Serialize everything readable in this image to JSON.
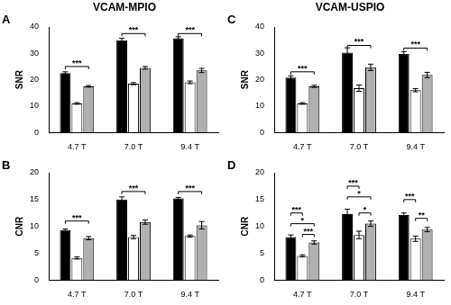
{
  "chart_data": [
    {
      "type": "bar",
      "title": "A",
      "subtitle": "VCAM-MPIO",
      "y_label": "SNR",
      "categories": [
        "4.7 T",
        "7.0 T",
        "9.4 T"
      ],
      "series": [
        {
          "color": "#000000",
          "values": [
            22.5,
            35.0,
            35.7
          ],
          "errors": [
            0.5,
            0.7,
            0.6
          ]
        },
        {
          "color": "#ffffff",
          "values": [
            11.0,
            18.5,
            19.0
          ],
          "errors": [
            0.3,
            0.4,
            0.5
          ]
        },
        {
          "color": "#b0b0b0",
          "values": [
            17.5,
            24.5,
            23.5
          ],
          "errors": [
            0.3,
            0.5,
            0.8
          ]
        }
      ],
      "ylim": [
        0,
        40
      ],
      "yticks": [
        0,
        10,
        20,
        30,
        40
      ],
      "grid": false,
      "annotations": [
        {
          "category": "4.7 T",
          "from": 0,
          "to": 2,
          "y": 25,
          "text": "***"
        },
        {
          "category": "7.0 T",
          "from": 0,
          "to": 2,
          "y": 37.5,
          "text": "***"
        },
        {
          "category": "9.4 T",
          "from": 0,
          "to": 2,
          "y": 37.5,
          "text": "***"
        }
      ]
    },
    {
      "type": "bar",
      "title": "B",
      "y_label": "CNR",
      "categories": [
        "4.7 T",
        "7.0 T",
        "9.4 T"
      ],
      "series": [
        {
          "color": "#000000",
          "values": [
            9.3,
            15.0,
            15.2
          ],
          "errors": [
            0.2,
            0.5,
            0.2
          ]
        },
        {
          "color": "#ffffff",
          "values": [
            4.1,
            8.0,
            8.2
          ],
          "errors": [
            0.2,
            0.3,
            0.2
          ]
        },
        {
          "color": "#b0b0b0",
          "values": [
            7.8,
            10.8,
            10.2
          ],
          "errors": [
            0.3,
            0.4,
            0.7
          ]
        }
      ],
      "ylim": [
        0,
        20
      ],
      "yticks": [
        0,
        5,
        10,
        15,
        20
      ],
      "grid": false,
      "annotations": [
        {
          "category": "4.7 T",
          "from": 0,
          "to": 2,
          "y": 11,
          "text": "***"
        },
        {
          "category": "7.0 T",
          "from": 0,
          "to": 2,
          "y": 16.5,
          "text": "***"
        },
        {
          "category": "9.4 T",
          "from": 0,
          "to": 2,
          "y": 16.5,
          "text": "***"
        }
      ]
    },
    {
      "type": "bar",
      "title": "C",
      "subtitle": "VCAM-USPIO",
      "y_label": "SNR",
      "categories": [
        "4.7 T",
        "7.0 T",
        "9.4 T"
      ],
      "series": [
        {
          "color": "#000000",
          "values": [
            20.8,
            30.3,
            29.8
          ],
          "errors": [
            0.7,
            1.8,
            0.8
          ]
        },
        {
          "color": "#ffffff",
          "values": [
            11.0,
            16.8,
            16.0
          ],
          "errors": [
            0.3,
            1.2,
            0.6
          ]
        },
        {
          "color": "#b0b0b0",
          "values": [
            17.5,
            24.7,
            21.8
          ],
          "errors": [
            0.4,
            1.2,
            1.0
          ]
        }
      ],
      "ylim": [
        0,
        40
      ],
      "yticks": [
        0,
        10,
        20,
        30,
        40
      ],
      "grid": false,
      "annotations": [
        {
          "category": "4.7 T",
          "from": 0,
          "to": 2,
          "y": 23,
          "text": "***"
        },
        {
          "category": "7.0 T",
          "from": 0,
          "to": 2,
          "y": 33,
          "text": "***"
        },
        {
          "category": "9.4 T",
          "from": 0,
          "to": 2,
          "y": 32,
          "text": "***"
        }
      ]
    },
    {
      "type": "bar",
      "title": "D",
      "y_label": "CNR",
      "categories": [
        "4.7 T",
        "7.0 T",
        "9.4 T"
      ],
      "series": [
        {
          "color": "#000000",
          "values": [
            8.0,
            12.3,
            12.1
          ],
          "errors": [
            0.4,
            0.9,
            0.4
          ]
        },
        {
          "color": "#ffffff",
          "values": [
            4.5,
            8.4,
            7.7
          ],
          "errors": [
            0.2,
            0.7,
            0.5
          ]
        },
        {
          "color": "#b0b0b0",
          "values": [
            7.0,
            10.5,
            9.4
          ],
          "errors": [
            0.3,
            0.5,
            0.4
          ]
        }
      ],
      "ylim": [
        0,
        20
      ],
      "yticks": [
        0,
        5,
        10,
        15,
        20
      ],
      "grid": false,
      "annotations": [
        {
          "category": "4.7 T",
          "from": 0,
          "to": 1,
          "y": 12.5,
          "text": "***"
        },
        {
          "category": "4.7 T",
          "from": 0,
          "to": 2,
          "y": 10.5,
          "text": "*"
        },
        {
          "category": "4.7 T",
          "from": 1,
          "to": 2,
          "y": 8.5,
          "text": "***"
        },
        {
          "category": "7.0 T",
          "from": 0,
          "to": 1,
          "y": 17.5,
          "text": "***"
        },
        {
          "category": "7.0 T",
          "from": 0,
          "to": 2,
          "y": 15.5,
          "text": "*"
        },
        {
          "category": "7.0 T",
          "from": 1,
          "to": 2,
          "y": 12.5,
          "text": "*"
        },
        {
          "category": "9.4 T",
          "from": 0,
          "to": 1,
          "y": 15,
          "text": "***"
        },
        {
          "category": "9.4 T",
          "from": 1,
          "to": 2,
          "y": 11.5,
          "text": "**"
        }
      ]
    }
  ]
}
